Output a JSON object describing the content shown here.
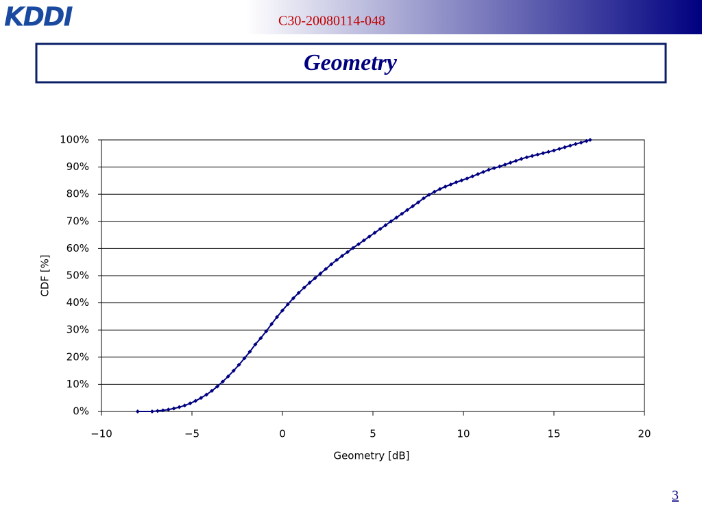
{
  "header": {
    "logo": "KDDI",
    "doc_id": "C30-20080114-048"
  },
  "slide_title": "Geometry",
  "page_number": "3",
  "chart_data": {
    "type": "line",
    "xlabel": "Geometry [dB]",
    "ylabel": "CDF [%]",
    "x": [
      -8,
      -7.2,
      -6.9,
      -6.6,
      -6.3,
      -6.0,
      -5.7,
      -5.4,
      -5.1,
      -4.8,
      -4.5,
      -4.2,
      -3.9,
      -3.6,
      -3.3,
      -3.0,
      -2.7,
      -2.4,
      -2.1,
      -1.8,
      -1.5,
      -1.2,
      -0.9,
      -0.6,
      -0.3,
      0,
      0.3,
      0.6,
      0.9,
      1.2,
      1.5,
      1.8,
      2.1,
      2.4,
      2.7,
      3.0,
      3.3,
      3.6,
      3.9,
      4.2,
      4.5,
      4.8,
      5.1,
      5.4,
      5.7,
      6.0,
      6.3,
      6.6,
      6.9,
      7.2,
      7.5,
      7.8,
      8.1,
      8.4,
      8.7,
      9.0,
      9.3,
      9.6,
      9.9,
      10.2,
      10.5,
      10.8,
      11.1,
      11.4,
      11.7,
      12.0,
      12.3,
      12.6,
      12.9,
      13.2,
      13.5,
      13.8,
      14.1,
      14.4,
      14.7,
      15.0,
      15.3,
      15.6,
      15.9,
      16.2,
      16.5,
      16.8,
      17.0
    ],
    "values": [
      0,
      0,
      0.2,
      0.4,
      0.7,
      1.1,
      1.6,
      2.2,
      3.0,
      3.9,
      5.0,
      6.2,
      7.6,
      9.2,
      11.0,
      12.9,
      15.0,
      17.2,
      19.6,
      22.0,
      24.7,
      27.0,
      29.5,
      32.2,
      34.8,
      37.2,
      39.5,
      41.7,
      43.7,
      45.6,
      47.4,
      49.1,
      50.8,
      52.5,
      54.2,
      55.8,
      57.3,
      58.7,
      60.2,
      61.6,
      63.0,
      64.4,
      65.8,
      67.2,
      68.6,
      70.0,
      71.4,
      72.8,
      74.2,
      75.6,
      77.0,
      78.5,
      79.8,
      80.9,
      81.9,
      82.8,
      83.6,
      84.4,
      85.1,
      85.8,
      86.6,
      87.4,
      88.2,
      89.0,
      89.6,
      90.2,
      90.9,
      91.6,
      92.3,
      93.0,
      93.6,
      94.1,
      94.6,
      95.1,
      95.6,
      96.1,
      96.7,
      97.3,
      97.9,
      98.5,
      99.0,
      99.6,
      100
    ],
    "color": "#000080",
    "xlim": [
      -10,
      20
    ],
    "xticks": [
      {
        "value": -10,
        "label": "−10"
      },
      {
        "value": -5,
        "label": "−5"
      },
      0,
      5,
      10,
      15,
      20
    ],
    "ylim": [
      0,
      100
    ],
    "yticks": [
      {
        "value": 0,
        "label": "0%"
      },
      {
        "value": 10,
        "label": "10%"
      },
      {
        "value": 20,
        "label": "20%"
      },
      {
        "value": 30,
        "label": "30%"
      },
      {
        "value": 40,
        "label": "40%"
      },
      {
        "value": 50,
        "label": "50%"
      },
      {
        "value": 60,
        "label": "60%"
      },
      {
        "value": 70,
        "label": "70%"
      },
      {
        "value": 80,
        "label": "80%"
      },
      {
        "value": 90,
        "label": "90%"
      },
      {
        "value": 100,
        "label": "100%"
      }
    ],
    "grid": true
  }
}
